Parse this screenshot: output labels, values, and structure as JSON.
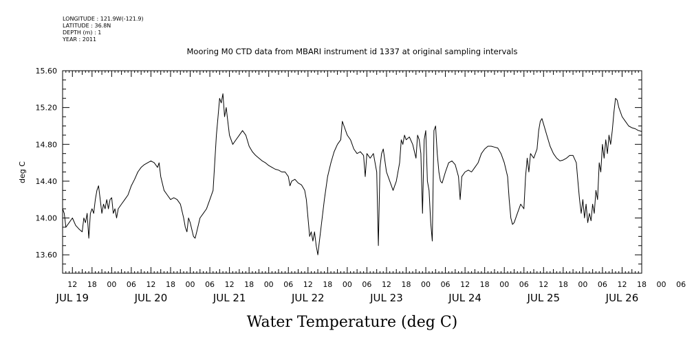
{
  "header": {
    "longitude": "LONGITUDE : 121.9W(-121.9)",
    "latitude": "LATITUDE : 36.8N",
    "depth": "DEPTH (m) : 1",
    "year": "YEAR : 2011"
  },
  "chart_data": {
    "type": "line",
    "title": "Mooring M0 CTD data from MBARI instrument id 1337 at original sampling intervals",
    "xlabel": "Water Temperature (deg C)",
    "ylabel": "deg C",
    "ylim": [
      13.4,
      15.6
    ],
    "xlim_hours": [
      9,
      186
    ],
    "yticks": [
      "13.60",
      "14.00",
      "14.40",
      "14.80",
      "15.20",
      "15.60"
    ],
    "hour_labels": [
      "12",
      "18",
      "00",
      "06",
      "12",
      "18",
      "00",
      "06",
      "12",
      "18",
      "00",
      "06",
      "12",
      "18",
      "00",
      "06",
      "12",
      "18",
      "00",
      "06",
      "12",
      "18",
      "00",
      "06",
      "12",
      "18",
      "00",
      "06",
      "12",
      "18",
      "00",
      "06"
    ],
    "day_labels": [
      "JUL 19",
      "JUL 20",
      "JUL 21",
      "JUL 22",
      "JUL 23",
      "JUL 24",
      "JUL 25",
      "JUL 26"
    ],
    "grid": false,
    "series": [
      {
        "values": [
          [
            9,
            14.1
          ],
          [
            9.5,
            14.05
          ],
          [
            10,
            13.9
          ],
          [
            11,
            13.95
          ],
          [
            12,
            14.0
          ],
          [
            13,
            13.92
          ],
          [
            14,
            13.88
          ],
          [
            15,
            13.85
          ],
          [
            15.5,
            14.0
          ],
          [
            16,
            13.95
          ],
          [
            16.5,
            14.05
          ],
          [
            17,
            13.78
          ],
          [
            17.5,
            14.05
          ],
          [
            18,
            14.1
          ],
          [
            18.5,
            14.05
          ],
          [
            19,
            14.2
          ],
          [
            19.5,
            14.3
          ],
          [
            20,
            14.35
          ],
          [
            20.5,
            14.2
          ],
          [
            21,
            14.05
          ],
          [
            21.5,
            14.15
          ],
          [
            22,
            14.1
          ],
          [
            22.5,
            14.2
          ],
          [
            23,
            14.1
          ],
          [
            23.5,
            14.2
          ],
          [
            24,
            14.22
          ],
          [
            24.5,
            14.05
          ],
          [
            25,
            14.1
          ],
          [
            25.5,
            14.0
          ],
          [
            26,
            14.1
          ],
          [
            27,
            14.15
          ],
          [
            28,
            14.2
          ],
          [
            29,
            14.25
          ],
          [
            30,
            14.35
          ],
          [
            31,
            14.42
          ],
          [
            32,
            14.5
          ],
          [
            33,
            14.55
          ],
          [
            34,
            14.58
          ],
          [
            35,
            14.6
          ],
          [
            36,
            14.62
          ],
          [
            37,
            14.6
          ],
          [
            38,
            14.55
          ],
          [
            38.5,
            14.6
          ],
          [
            39,
            14.45
          ],
          [
            40,
            14.3
          ],
          [
            41,
            14.25
          ],
          [
            42,
            14.2
          ],
          [
            43,
            14.22
          ],
          [
            44,
            14.2
          ],
          [
            45,
            14.15
          ],
          [
            46,
            14.0
          ],
          [
            46.5,
            13.9
          ],
          [
            47,
            13.85
          ],
          [
            47.5,
            14.0
          ],
          [
            48,
            13.95
          ],
          [
            49,
            13.8
          ],
          [
            49.5,
            13.78
          ],
          [
            50,
            13.85
          ],
          [
            51,
            14.0
          ],
          [
            52,
            14.05
          ],
          [
            53,
            14.1
          ],
          [
            54,
            14.2
          ],
          [
            55,
            14.3
          ],
          [
            55.5,
            14.6
          ],
          [
            56,
            14.9
          ],
          [
            56.5,
            15.1
          ],
          [
            57,
            15.3
          ],
          [
            57.5,
            15.25
          ],
          [
            58,
            15.35
          ],
          [
            58.5,
            15.1
          ],
          [
            59,
            15.2
          ],
          [
            59.5,
            15.05
          ],
          [
            60,
            14.9
          ],
          [
            60.5,
            14.85
          ],
          [
            61,
            14.8
          ],
          [
            62,
            14.85
          ],
          [
            63,
            14.9
          ],
          [
            64,
            14.95
          ],
          [
            65,
            14.9
          ],
          [
            66,
            14.78
          ],
          [
            67,
            14.72
          ],
          [
            68,
            14.68
          ],
          [
            69,
            14.65
          ],
          [
            70,
            14.62
          ],
          [
            71,
            14.6
          ],
          [
            72,
            14.57
          ],
          [
            73,
            14.55
          ],
          [
            74,
            14.53
          ],
          [
            75,
            14.52
          ],
          [
            76,
            14.5
          ],
          [
            77,
            14.5
          ],
          [
            78,
            14.45
          ],
          [
            78.5,
            14.35
          ],
          [
            79,
            14.4
          ],
          [
            80,
            14.42
          ],
          [
            81,
            14.38
          ],
          [
            82,
            14.36
          ],
          [
            83,
            14.3
          ],
          [
            83.5,
            14.2
          ],
          [
            84,
            14.0
          ],
          [
            84.5,
            13.8
          ],
          [
            85,
            13.85
          ],
          [
            85.5,
            13.75
          ],
          [
            86,
            13.85
          ],
          [
            86.5,
            13.7
          ],
          [
            87,
            13.6
          ],
          [
            87.5,
            13.75
          ],
          [
            88,
            13.9
          ],
          [
            89,
            14.2
          ],
          [
            90,
            14.45
          ],
          [
            91,
            14.6
          ],
          [
            92,
            14.72
          ],
          [
            93,
            14.8
          ],
          [
            94,
            14.85
          ],
          [
            94.5,
            15.05
          ],
          [
            95,
            15.0
          ],
          [
            96,
            14.9
          ],
          [
            97,
            14.85
          ],
          [
            98,
            14.75
          ],
          [
            99,
            14.7
          ],
          [
            100,
            14.72
          ],
          [
            101,
            14.68
          ],
          [
            101.5,
            14.45
          ],
          [
            102,
            14.7
          ],
          [
            103,
            14.65
          ],
          [
            104,
            14.7
          ],
          [
            105,
            14.5
          ],
          [
            105.5,
            13.7
          ],
          [
            106,
            14.55
          ],
          [
            106.5,
            14.7
          ],
          [
            107,
            14.75
          ],
          [
            108,
            14.5
          ],
          [
            109,
            14.4
          ],
          [
            110,
            14.3
          ],
          [
            111,
            14.4
          ],
          [
            112,
            14.6
          ],
          [
            112.5,
            14.85
          ],
          [
            113,
            14.8
          ],
          [
            113.5,
            14.9
          ],
          [
            114,
            14.85
          ],
          [
            115,
            14.88
          ],
          [
            116,
            14.8
          ],
          [
            117,
            14.65
          ],
          [
            117.5,
            14.9
          ],
          [
            118,
            14.85
          ],
          [
            118.5,
            14.7
          ],
          [
            119,
            14.05
          ],
          [
            119.5,
            14.85
          ],
          [
            120,
            14.95
          ],
          [
            120.5,
            14.4
          ],
          [
            121,
            14.3
          ],
          [
            121.5,
            13.95
          ],
          [
            122,
            13.75
          ],
          [
            122.5,
            14.95
          ],
          [
            123,
            15.0
          ],
          [
            123.5,
            14.7
          ],
          [
            124,
            14.5
          ],
          [
            124.5,
            14.4
          ],
          [
            125,
            14.38
          ],
          [
            126,
            14.5
          ],
          [
            127,
            14.6
          ],
          [
            128,
            14.62
          ],
          [
            129,
            14.58
          ],
          [
            130,
            14.45
          ],
          [
            130.5,
            14.2
          ],
          [
            131,
            14.45
          ],
          [
            132,
            14.5
          ],
          [
            133,
            14.52
          ],
          [
            134,
            14.5
          ],
          [
            135,
            14.55
          ],
          [
            136,
            14.6
          ],
          [
            137,
            14.7
          ],
          [
            138,
            14.75
          ],
          [
            139,
            14.78
          ],
          [
            140,
            14.78
          ],
          [
            141,
            14.77
          ],
          [
            142,
            14.76
          ],
          [
            143,
            14.7
          ],
          [
            144,
            14.6
          ],
          [
            145,
            14.45
          ],
          [
            145.5,
            14.2
          ],
          [
            146,
            14.0
          ],
          [
            146.5,
            13.93
          ],
          [
            147,
            13.95
          ],
          [
            148,
            14.05
          ],
          [
            149,
            14.15
          ],
          [
            150,
            14.1
          ],
          [
            150.5,
            14.45
          ],
          [
            151,
            14.65
          ],
          [
            151.5,
            14.5
          ],
          [
            152,
            14.7
          ],
          [
            153,
            14.65
          ],
          [
            154,
            14.75
          ],
          [
            154.5,
            14.95
          ],
          [
            155,
            15.05
          ],
          [
            155.5,
            15.08
          ],
          [
            156,
            15.02
          ],
          [
            157,
            14.9
          ],
          [
            158,
            14.78
          ],
          [
            159,
            14.7
          ],
          [
            160,
            14.65
          ],
          [
            161,
            14.62
          ],
          [
            162,
            14.63
          ],
          [
            163,
            14.65
          ],
          [
            164,
            14.68
          ],
          [
            165,
            14.68
          ],
          [
            166,
            14.6
          ],
          [
            166.5,
            14.4
          ],
          [
            167,
            14.2
          ],
          [
            167.5,
            14.05
          ],
          [
            168,
            14.2
          ],
          [
            168.5,
            14.0
          ],
          [
            169,
            14.15
          ],
          [
            169.5,
            13.95
          ],
          [
            170,
            14.05
          ],
          [
            170.5,
            13.97
          ],
          [
            171,
            14.15
          ],
          [
            171.5,
            14.05
          ],
          [
            172,
            14.3
          ],
          [
            172.5,
            14.2
          ],
          [
            173,
            14.6
          ],
          [
            173.5,
            14.5
          ],
          [
            174,
            14.8
          ],
          [
            174.5,
            14.65
          ],
          [
            175,
            14.85
          ],
          [
            175.5,
            14.7
          ],
          [
            176,
            14.9
          ],
          [
            176.5,
            14.8
          ],
          [
            177,
            14.95
          ],
          [
            177.5,
            15.15
          ],
          [
            178,
            15.3
          ],
          [
            178.5,
            15.28
          ],
          [
            179,
            15.2
          ],
          [
            180,
            15.1
          ],
          [
            181,
            15.05
          ],
          [
            182,
            15.0
          ],
          [
            183,
            14.98
          ],
          [
            184,
            14.97
          ],
          [
            185,
            14.95
          ],
          [
            186,
            14.94
          ]
        ]
      }
    ]
  }
}
